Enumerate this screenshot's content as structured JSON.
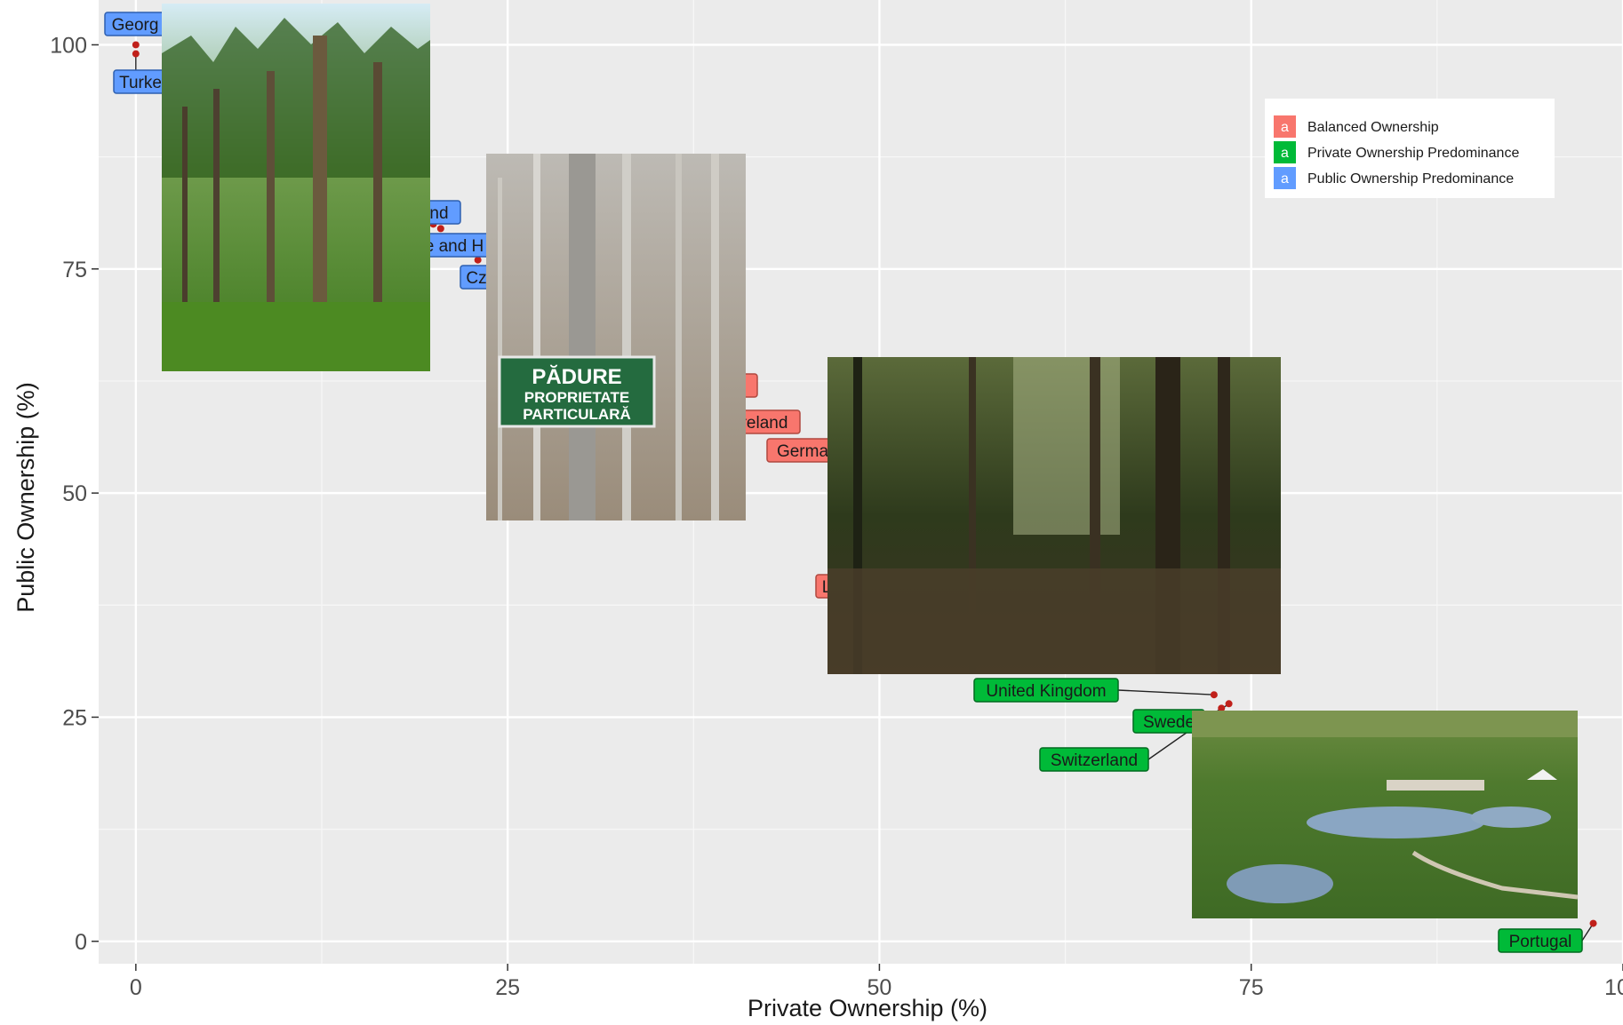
{
  "chart_data": {
    "type": "scatter",
    "xlabel": "Private Ownership (%)",
    "ylabel": "Public Ownership (%)",
    "xlim": [
      -2.5,
      100
    ],
    "ylim": [
      -2.5,
      105
    ],
    "x_ticks": [
      "0",
      "25",
      "50",
      "75",
      "100"
    ],
    "y_ticks": [
      "0",
      "25",
      "50",
      "75",
      "100"
    ],
    "grid": true,
    "legend_position": "top-right",
    "legend": [
      {
        "key": "a",
        "label": "Balanced Ownership",
        "color": "#f8766d"
      },
      {
        "key": "a",
        "label": "Private Ownership Predominance",
        "color": "#00ba38"
      },
      {
        "key": "a",
        "label": "Public Ownership Predominance",
        "color": "#619cff"
      }
    ],
    "points": [
      {
        "label": "Georg",
        "x": 0,
        "y": 100,
        "group": "Public Ownership Predominance"
      },
      {
        "label": "Turke",
        "x": 0,
        "y": 99,
        "group": "Public Ownership Predominance"
      },
      {
        "label": "nd",
        "x": 20,
        "y": 80,
        "group": "Public Ownership Predominance"
      },
      {
        "label": "e and H",
        "x": 20.5,
        "y": 79.5,
        "group": "Public Ownership Predominance"
      },
      {
        "label": "Cz",
        "x": 23,
        "y": 76,
        "group": "Public Ownership Predominance"
      },
      {
        "label": "",
        "x": 40,
        "y": 60,
        "group": "Balanced Ownership"
      },
      {
        "label": "reland",
        "x": 42,
        "y": 57,
        "group": "Balanced Ownership"
      },
      {
        "label": "Germa",
        "x": 46,
        "y": 54,
        "group": "Balanced Ownership"
      },
      {
        "label": "L",
        "x": 49,
        "y": 40,
        "group": "Balanced Ownership"
      },
      {
        "label": "United Kingdom",
        "x": 72.5,
        "y": 27.5,
        "group": "Private Ownership Predominance"
      },
      {
        "label": "Swede",
        "x": 73.5,
        "y": 26.5,
        "group": "Private Ownership Predominance"
      },
      {
        "label": "Switzerland",
        "x": 73,
        "y": 26,
        "group": "Private Ownership Predominance"
      },
      {
        "label": "Portugal",
        "x": 98,
        "y": 2,
        "group": "Private Ownership Predominance"
      }
    ],
    "photos": [
      {
        "name": "tall-conifer-forest-photo"
      },
      {
        "name": "padure-sign-photo",
        "sign_text": [
          "PĂDURE",
          "PROPRIETATE",
          "PARTICULARĂ"
        ]
      },
      {
        "name": "dark-forest-interior-photo"
      },
      {
        "name": "lake-valley-village-photo"
      }
    ]
  }
}
